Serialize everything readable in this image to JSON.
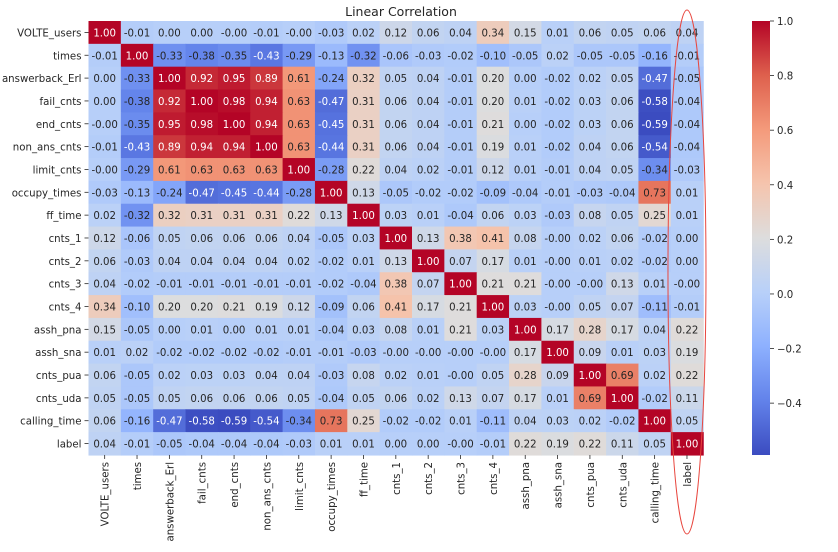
{
  "chart_data": {
    "type": "heatmap",
    "title": "Linear Correlation",
    "labels": [
      "VOLTE_users",
      "times",
      "answerback_Erl",
      "fail_cnts",
      "end_cnts",
      "non_ans_cnts",
      "limit_cnts",
      "occupy_times",
      "ff_time",
      "cnts_1",
      "cnts_2",
      "cnts_3",
      "cnts_4",
      "assh_pna",
      "assh_sna",
      "cnts_pua",
      "cnts_uda",
      "calling_time",
      "label"
    ],
    "matrix": [
      [
        "1.00",
        "-0.01",
        "0.00",
        "0.00",
        "-0.00",
        "-0.01",
        "-0.00",
        "-0.03",
        "0.02",
        "0.12",
        "0.06",
        "0.04",
        "0.34",
        "0.15",
        "0.01",
        "0.06",
        "0.05",
        "0.06",
        "0.04"
      ],
      [
        "-0.01",
        "1.00",
        "-0.33",
        "-0.38",
        "-0.35",
        "-0.43",
        "-0.29",
        "-0.13",
        "-0.32",
        "-0.06",
        "-0.03",
        "-0.02",
        "-0.10",
        "-0.05",
        "0.02",
        "-0.05",
        "-0.05",
        "-0.16",
        "-0.01"
      ],
      [
        "0.00",
        "-0.33",
        "1.00",
        "0.92",
        "0.95",
        "0.89",
        "0.61",
        "-0.24",
        "0.32",
        "0.05",
        "0.04",
        "-0.01",
        "0.20",
        "0.00",
        "-0.02",
        "0.02",
        "0.05",
        "-0.47",
        "-0.05"
      ],
      [
        "0.00",
        "-0.38",
        "0.92",
        "1.00",
        "0.98",
        "0.94",
        "0.63",
        "-0.47",
        "0.31",
        "0.06",
        "0.04",
        "-0.01",
        "0.20",
        "0.01",
        "-0.02",
        "0.03",
        "0.06",
        "-0.58",
        "-0.04"
      ],
      [
        "-0.00",
        "-0.35",
        "0.95",
        "0.98",
        "1.00",
        "0.94",
        "0.63",
        "-0.45",
        "0.31",
        "0.06",
        "0.04",
        "-0.01",
        "0.21",
        "0.00",
        "-0.02",
        "0.03",
        "0.06",
        "-0.59",
        "-0.04"
      ],
      [
        "-0.01",
        "-0.43",
        "0.89",
        "0.94",
        "0.94",
        "1.00",
        "0.63",
        "-0.44",
        "0.31",
        "0.06",
        "0.04",
        "-0.01",
        "0.19",
        "0.01",
        "-0.02",
        "0.04",
        "0.06",
        "-0.54",
        "-0.04"
      ],
      [
        "-0.00",
        "-0.29",
        "0.61",
        "0.63",
        "0.63",
        "0.63",
        "1.00",
        "-0.28",
        "0.22",
        "0.04",
        "0.02",
        "-0.01",
        "0.12",
        "0.01",
        "-0.01",
        "0.04",
        "0.05",
        "-0.34",
        "-0.03"
      ],
      [
        "-0.03",
        "-0.13",
        "-0.24",
        "-0.47",
        "-0.45",
        "-0.44",
        "-0.28",
        "1.00",
        "0.13",
        "-0.05",
        "-0.02",
        "-0.02",
        "-0.09",
        "-0.04",
        "-0.01",
        "-0.03",
        "-0.04",
        "0.73",
        "0.01"
      ],
      [
        "0.02",
        "-0.32",
        "0.32",
        "0.31",
        "0.31",
        "0.31",
        "0.22",
        "0.13",
        "1.00",
        "0.03",
        "0.01",
        "-0.04",
        "0.06",
        "0.03",
        "-0.03",
        "0.08",
        "0.05",
        "0.25",
        "0.01"
      ],
      [
        "0.12",
        "-0.06",
        "0.05",
        "0.06",
        "0.06",
        "0.06",
        "0.04",
        "-0.05",
        "0.03",
        "1.00",
        "0.13",
        "0.38",
        "0.41",
        "0.08",
        "-0.00",
        "0.02",
        "0.06",
        "-0.02",
        "0.00"
      ],
      [
        "0.06",
        "-0.03",
        "0.04",
        "0.04",
        "0.04",
        "0.04",
        "0.02",
        "-0.02",
        "0.01",
        "0.13",
        "1.00",
        "0.07",
        "0.17",
        "0.01",
        "-0.00",
        "0.01",
        "0.02",
        "-0.02",
        "0.00"
      ],
      [
        "0.04",
        "-0.02",
        "-0.01",
        "-0.01",
        "-0.01",
        "-0.01",
        "-0.01",
        "-0.02",
        "-0.04",
        "0.38",
        "0.07",
        "1.00",
        "0.21",
        "0.21",
        "-0.00",
        "-0.00",
        "0.13",
        "0.01",
        "-0.00"
      ],
      [
        "0.34",
        "-0.10",
        "0.20",
        "0.20",
        "0.21",
        "0.19",
        "0.12",
        "-0.09",
        "0.06",
        "0.41",
        "0.17",
        "0.21",
        "1.00",
        "0.03",
        "-0.00",
        "0.05",
        "0.07",
        "-0.11",
        "-0.01"
      ],
      [
        "0.15",
        "-0.05",
        "0.00",
        "0.01",
        "0.00",
        "0.01",
        "0.01",
        "-0.04",
        "0.03",
        "0.08",
        "0.01",
        "0.21",
        "0.03",
        "1.00",
        "0.17",
        "0.28",
        "0.17",
        "0.04",
        "0.22"
      ],
      [
        "0.01",
        "0.02",
        "-0.02",
        "-0.02",
        "-0.02",
        "-0.02",
        "-0.01",
        "-0.01",
        "-0.03",
        "-0.00",
        "-0.00",
        "-0.00",
        "-0.00",
        "0.17",
        "1.00",
        "0.09",
        "0.01",
        "0.03",
        "0.19"
      ],
      [
        "0.06",
        "-0.05",
        "0.02",
        "0.03",
        "0.03",
        "0.04",
        "0.04",
        "-0.03",
        "0.08",
        "0.02",
        "0.01",
        "-0.00",
        "0.05",
        "0.28",
        "0.09",
        "1.00",
        "0.69",
        "0.02",
        "0.22"
      ],
      [
        "0.05",
        "-0.05",
        "0.05",
        "0.06",
        "0.06",
        "0.06",
        "0.05",
        "-0.04",
        "0.05",
        "0.06",
        "0.02",
        "0.13",
        "0.07",
        "0.17",
        "0.01",
        "0.69",
        "1.00",
        "-0.02",
        "0.11"
      ],
      [
        "0.06",
        "-0.16",
        "-0.47",
        "-0.58",
        "-0.59",
        "-0.54",
        "-0.34",
        "0.73",
        "0.25",
        "-0.02",
        "-0.02",
        "0.01",
        "-0.11",
        "0.04",
        "0.03",
        "0.02",
        "-0.02",
        "1.00",
        "0.05"
      ],
      [
        "0.04",
        "-0.01",
        "-0.05",
        "-0.04",
        "-0.04",
        "-0.04",
        "-0.03",
        "0.01",
        "0.01",
        "0.00",
        "0.00",
        "-0.00",
        "-0.01",
        "0.22",
        "0.19",
        "0.22",
        "0.11",
        "0.05",
        "1.00"
      ]
    ],
    "colorbar": {
      "colormap": "coolwarm",
      "vmin": -0.59,
      "vmax": 1.0,
      "ticks": [
        "1.0",
        "0.8",
        "0.6",
        "0.4",
        "0.2",
        "0.0",
        "−0.2",
        "−0.4"
      ]
    },
    "annotation": {
      "shape": "ellipse",
      "color": "#e8473f",
      "highlights_column": "label"
    }
  }
}
